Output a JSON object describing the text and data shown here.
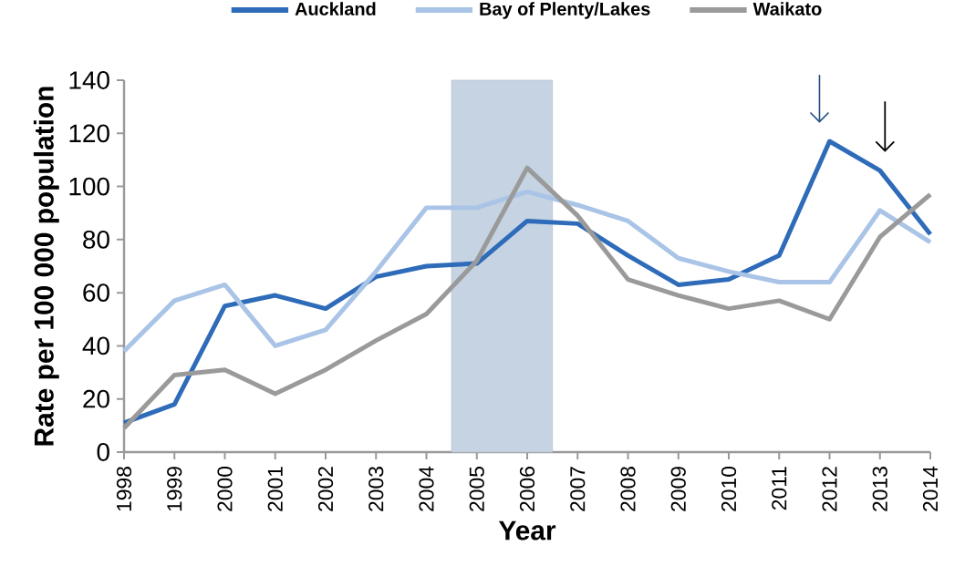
{
  "chart_data": {
    "type": "line",
    "xlabel": "Year",
    "ylabel": "Rate per 100 000 population",
    "x": [
      1998,
      1999,
      2000,
      2001,
      2002,
      2003,
      2004,
      2005,
      2006,
      2007,
      2008,
      2009,
      2010,
      2011,
      2012,
      2013,
      2014
    ],
    "xlim": [
      1998,
      2014
    ],
    "xticks": [
      1998,
      1999,
      2000,
      2001,
      2002,
      2003,
      2004,
      2005,
      2006,
      2007,
      2008,
      2009,
      2010,
      2011,
      2012,
      2013,
      2014
    ],
    "ylim": [
      0,
      140
    ],
    "yticks": [
      0,
      20,
      40,
      60,
      80,
      100,
      120,
      140
    ],
    "series": [
      {
        "name": "Auckland",
        "color": "#2e6bb8",
        "values": [
          11,
          18,
          55,
          59,
          54,
          66,
          70,
          71,
          87,
          86,
          74,
          63,
          65,
          74,
          117,
          106,
          82
        ]
      },
      {
        "name": "Bay of Plenty/Lakes",
        "color": "#a9c4e6",
        "values": [
          38,
          57,
          63,
          40,
          46,
          68,
          92,
          92,
          98,
          93,
          87,
          73,
          68,
          64,
          64,
          91,
          79
        ]
      },
      {
        "name": "Waikato",
        "color": "#9a9a9a",
        "values": [
          9,
          29,
          31,
          22,
          31,
          42,
          52,
          72,
          107,
          89,
          65,
          59,
          54,
          57,
          50,
          81,
          97
        ]
      }
    ],
    "bands": [
      {
        "axis": "x",
        "from": 2004.5,
        "to": 2006.5,
        "color": "#c5d3e3"
      }
    ],
    "legend": "top",
    "grid": false,
    "marker": "none",
    "line_style": "solid"
  }
}
